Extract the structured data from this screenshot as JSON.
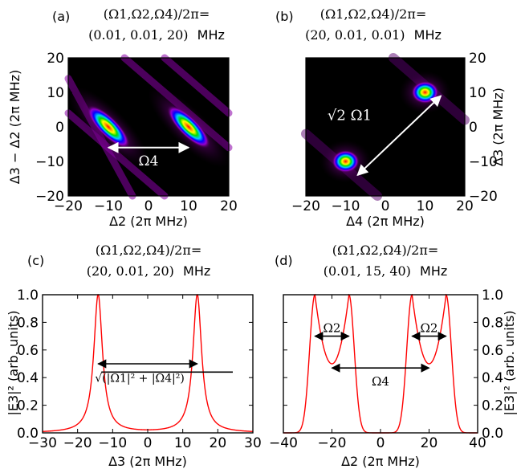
{
  "colors": {
    "curve": "#ff0000",
    "axis": "#000000",
    "arrow_heat": "#ffffff"
  },
  "panels": [
    {
      "tag": "(a)",
      "title_line1": "(Ω1,Ω2,Ω4)/2π=",
      "title_values": "(0.01, 0.01, 20)",
      "title_unit": "MHz",
      "xlabel": "Δ2 (2π MHz)",
      "ylabel": "Δ3 − Δ2 (2π MHz)",
      "annotation": "Ω4"
    },
    {
      "tag": "(b)",
      "title_line1": "(Ω1,Ω2,Ω4)/2π=",
      "title_values": "(20, 0.01, 0.01)",
      "title_unit": "MHz",
      "xlabel": "Δ4 (2π MHz)",
      "ylabel": "Δ3 (2π MHz)",
      "annotation": "√2 Ω1"
    },
    {
      "tag": "(c)",
      "title_line1": "(Ω1,Ω2,Ω4)/2π=",
      "title_values": "(20, 0.01, 20)",
      "title_unit": "MHz",
      "xlabel": "Δ3 (2π MHz)",
      "ylabel": "|E3|² (arb. units)",
      "annotation": "√(|Ω1|² + |Ω4|²)"
    },
    {
      "tag": "(d)",
      "title_line1": "(Ω1,Ω2,Ω4)/2π=",
      "title_values": "(0.01, 15, 40)",
      "title_unit": "MHz",
      "xlabel": "Δ2 (2π MHz)",
      "ylabel": "|E3|² (arb. units)",
      "annotation_outer": "Ω4",
      "annotation_left": "Ω2",
      "annotation_right": "Ω2"
    }
  ],
  "chart_data": [
    {
      "type": "heatmap",
      "panel": "a",
      "x": {
        "label": "Δ2 (2π MHz)",
        "lim": [
          -20,
          20
        ],
        "ticks": [
          -20,
          -10,
          0,
          10,
          20
        ]
      },
      "y": {
        "label": "Δ3 − Δ2 (2π MHz)",
        "lim": [
          -20,
          20
        ],
        "ticks": [
          -20,
          -10,
          0,
          10,
          20
        ]
      },
      "peaks": [
        {
          "x": -10,
          "y": 0
        },
        {
          "x": 10,
          "y": 0
        }
      ],
      "annotation": {
        "text": "Ω4",
        "from": [
          -10,
          -6
        ],
        "to": [
          10,
          -6
        ]
      }
    },
    {
      "type": "heatmap",
      "panel": "b",
      "x": {
        "label": "Δ4 (2π MHz)",
        "lim": [
          -20,
          20
        ],
        "ticks": [
          -20,
          -10,
          0,
          10,
          20
        ]
      },
      "y": {
        "label": "Δ3 (2π MHz)",
        "lim": [
          -20,
          20
        ],
        "ticks": [
          -20,
          -10,
          0,
          10,
          20
        ]
      },
      "peaks": [
        {
          "x": -10,
          "y": -10
        },
        {
          "x": 10,
          "y": 10
        }
      ],
      "annotation": {
        "text": "√2 Ω1",
        "from": [
          -7,
          -14
        ],
        "to": [
          14,
          9
        ]
      }
    },
    {
      "type": "line",
      "panel": "c",
      "x": {
        "label": "Δ3 (2π MHz)",
        "lim": [
          -30,
          30
        ],
        "ticks": [
          -30,
          -20,
          -10,
          0,
          10,
          20,
          30
        ]
      },
      "y": {
        "label": "|E3|² (arb. units)",
        "lim": [
          0,
          1
        ],
        "ticks": [
          0.0,
          0.2,
          0.4,
          0.6,
          0.8,
          1.0
        ]
      },
      "series": [
        {
          "peaks": [
            -14.14,
            14.14
          ],
          "half_width": 1.5,
          "max": 1.0
        }
      ],
      "annotation": {
        "text": "√(|Ω1|² + |Ω4|²)",
        "from": -14.14,
        "to": 14.14,
        "y": 0.5
      }
    },
    {
      "type": "line",
      "panel": "d",
      "x": {
        "label": "Δ2 (2π MHz)",
        "lim": [
          -40,
          40
        ],
        "ticks": [
          -40,
          -20,
          0,
          20,
          40
        ]
      },
      "y": {
        "label": "|E3|² (arb. units)",
        "lim": [
          0,
          1
        ],
        "ticks": [
          0.0,
          0.2,
          0.4,
          0.6,
          0.8,
          1.0
        ]
      },
      "series": [
        {
          "peaks": [
            -27,
            -13,
            13,
            27
          ],
          "valley_value": 0.5,
          "max": 1.0
        }
      ],
      "annotations": [
        {
          "text": "Ω2",
          "from": -27,
          "to": -13,
          "y": 0.7
        },
        {
          "text": "Ω2",
          "from": 13,
          "to": 27,
          "y": 0.7
        },
        {
          "text": "Ω4",
          "from": -20,
          "to": 20,
          "y": 0.47
        }
      ]
    }
  ]
}
